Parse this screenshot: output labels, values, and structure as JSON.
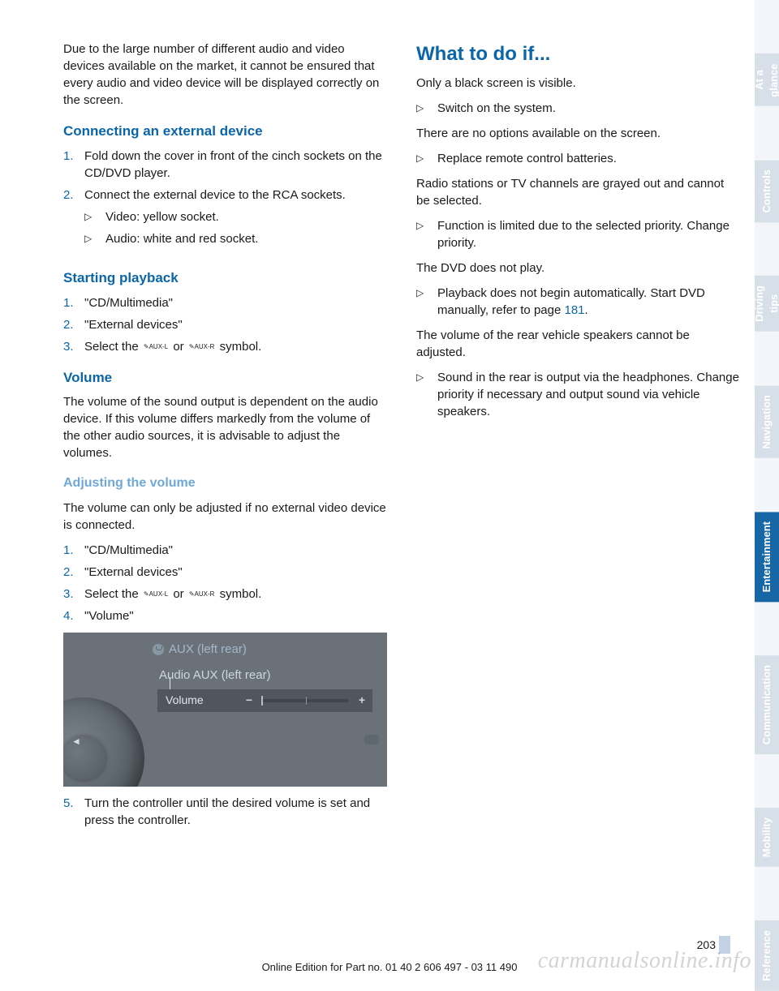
{
  "left": {
    "intro": "Due to the large number of different audio and video devices available on the market, it cannot be ensured that every audio and video device will be displayed correctly on the screen.",
    "connecting": {
      "title": "Connecting an external device",
      "step1": "Fold down the cover in front of the cinch sockets on the CD/DVD player.",
      "step2": "Connect the external device to the RCA sockets.",
      "bullet1": "Video: yellow socket.",
      "bullet2": "Audio: white and red socket."
    },
    "starting": {
      "title": "Starting playback",
      "step1": "\"CD/Multimedia\"",
      "step2": "\"External devices\"",
      "step3a": "Select the ",
      "aux_l": "AUX-L",
      "or": " or ",
      "aux_r": "AUX-R",
      "step3b": " symbol."
    },
    "volume": {
      "title": "Volume",
      "text": "The volume of the sound output is dependent on the audio device. If this volume differs markedly from the volume of the other audio sources, it is advisable to adjust the volumes."
    },
    "adjusting": {
      "title": "Adjusting the volume",
      "intro": "The volume can only be adjusted if no external video device is connected.",
      "step1": "\"CD/Multimedia\"",
      "step2": "\"External devices\"",
      "step3a": "Select the ",
      "aux_l": "AUX-L",
      "or": " or ",
      "aux_r": "AUX-R",
      "step3b": " symbol.",
      "step4": "\"Volume\"",
      "step5": "Turn the controller until the desired volume is set and press the controller."
    },
    "screenshot": {
      "top": "AUX (left rear)",
      "mid": "Audio AUX (left rear)",
      "row_label": "Volume"
    }
  },
  "right": {
    "title": "What to do if...",
    "p1": "Only a black screen is visible.",
    "b1": "Switch on the system.",
    "p2": "There are no options available on the screen.",
    "b2": "Replace remote control batteries.",
    "p3": "Radio stations or TV channels are grayed out and cannot be selected.",
    "b3": "Function is limited due to the selected priority. Change priority.",
    "p4": "The DVD does not play.",
    "b4a": "Playback does not begin automatically. Start DVD manually, refer to page ",
    "b4_link": "181",
    "b4b": ".",
    "p5": "The volume of the rear vehicle speakers cannot be adjusted.",
    "b5": "Sound in the rear is output via the headphones. Change priority if necessary and output sound via vehicle speakers."
  },
  "tabs": {
    "t1": "At a glance",
    "t2": "Controls",
    "t3": "Driving tips",
    "t4": "Navigation",
    "t5": "Entertainment",
    "t6": "Communication",
    "t7": "Mobility",
    "t8": "Reference"
  },
  "page_number": "203",
  "footer": "Online Edition for Part no. 01 40 2 606 497 - 03 11 490",
  "watermark": "carmanualsonline.info"
}
